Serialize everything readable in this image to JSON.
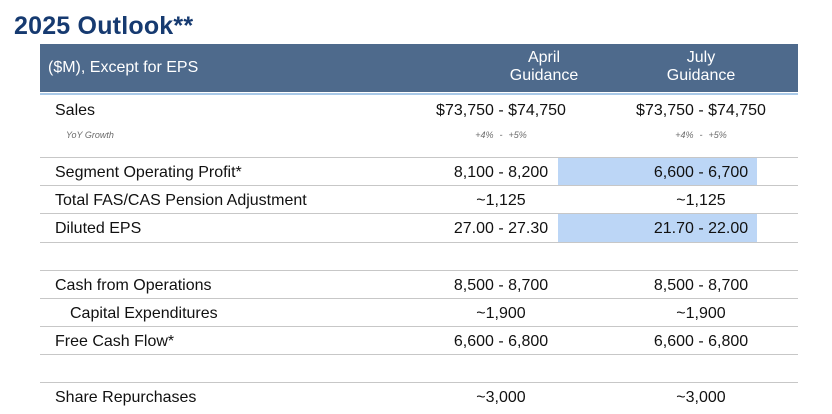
{
  "page_title": "2025 Outlook**",
  "header": {
    "label": "($M), Except for EPS",
    "col1_line1": "April",
    "col1_line2": "Guidance",
    "col2_line1": "July",
    "col2_line2": "Guidance"
  },
  "rows": {
    "sales": {
      "label": "Sales",
      "april": "$73,750 - $74,750",
      "july": "$73,750 - $74,750"
    },
    "yoy": {
      "label": "YoY Growth",
      "april_low": "+4%",
      "april_sep": "-",
      "april_high": "+5%",
      "july_low": "+4%",
      "july_sep": "-",
      "july_high": "+5%"
    },
    "segment_op_profit": {
      "label": "Segment Operating Profit*",
      "april": "8,100 - 8,200",
      "july": "6,600 - 6,700"
    },
    "fas_cas": {
      "label": "Total FAS/CAS Pension Adjustment",
      "april": "~1,125",
      "july": "~1,125"
    },
    "diluted_eps": {
      "label": "Diluted EPS",
      "april": "27.00 - 27.30",
      "july": "21.70 - 22.00"
    },
    "cash_ops": {
      "label": "Cash from Operations",
      "april": "8,500 - 8,700",
      "july": "8,500 - 8,700"
    },
    "capex": {
      "label": "Capital Expenditures",
      "april": "~1,900",
      "july": "~1,900"
    },
    "fcf": {
      "label": "Free Cash Flow*",
      "april": "6,600 - 6,800",
      "july": "6,600 - 6,800"
    },
    "repurchases": {
      "label": "Share Repurchases",
      "april": "~3,000",
      "july": "~3,000"
    }
  },
  "colors": {
    "title": "#163a70",
    "header_bg": "#4e6a8c",
    "header_rule": "#a9c9e8",
    "highlight": "#bcd6f6"
  }
}
